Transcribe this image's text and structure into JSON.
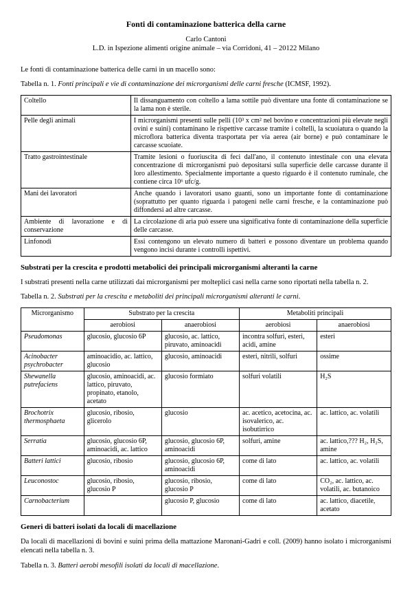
{
  "title": "Fonti di contaminazione batterica della carne",
  "author": "Carlo Cantoni",
  "affiliation": "L.D. in Ispezione alimenti origine animale – via Corridoni, 41 – 20122 Milano",
  "intro": "Le fonti di contaminazione batterica delle carni in un macello sono:",
  "table1": {
    "caption_label": "Tabella n. 1. ",
    "caption_text": "Fonti principali e vie di contaminazione dei microrganismi delle carni fresche",
    "caption_suffix": " (ICMSF, 1992).",
    "rows": [
      [
        "Coltello",
        "Il dissanguamento con coltello a lama sottile può diventare una fonte di contaminazione se la lama non è sterile."
      ],
      [
        "Pelle degli animali",
        "I microrganismi presenti sulle pelli (10³ x cm² nel bovino e concentrazioni più elevate negli ovini e suini) contaminano le rispettive carcasse tramite i coltelli, la scuoiatura o quando la microflora batterica diventa trasportata per via aerea (air borne) e può contaminare le carcasse scuoiate."
      ],
      [
        "Tratto gastrointestinale",
        "Tramite lesioni o fuoriuscita di feci dall'ano, il contenuto intestinale con una elevata concentrazione di microrganismi può depositarsi sulla superficie delle carcasse durante il loro allestimento. Specialmente importante a questo riguardo è il contenuto ruminale, che contiene circa 10⁶ ufc/g."
      ],
      [
        "Mani dei lavoratori",
        "Anche quando i lavoratori usano guanti, sono un importante fonte di contaminazione (soprattutto per quanto riguarda i patogeni nelle carni fresche, e la contaminazione può diffondersi ad altre carcasse."
      ],
      [
        "Ambiente di lavorazione e di conservazione",
        "La circolazione di aria può essere una significativa fonte di contaminazione della superficie delle carcasse."
      ],
      [
        "Linfonodi",
        "Essi contengono un elevato numero di batteri e possono diventare un problema quando vengono incisi durante i controlli ispettivi."
      ]
    ]
  },
  "section2_title": "Substrati per la crescita e prodotti metabolici dei principali microrganismi alteranti la carne",
  "section2_intro": "I substrati presenti nella carne utilizzati dai microrganismi per molteplici casi nella carne sono riportati nella tabella n. 2.",
  "table2": {
    "caption_label": "Tabella n. 2. ",
    "caption_text": "Substrati per la crescita e metaboliti dei principali microrganismi alteranti le carni",
    "caption_suffix": ".",
    "header1": [
      "Microrganismo",
      "Substrato per la crescita",
      "Metaboliti principali"
    ],
    "header2": [
      "aerobiosi",
      "anaerobiosi",
      "aerobiosi",
      "anaerobiosi"
    ],
    "rows": [
      [
        "Pseudomonas",
        "glucosio, glucosio 6P",
        "glucosio, ac. lattico, piruvato, aminoacidi",
        "incontra solfuri, esteri, acidi, amine",
        "esteri"
      ],
      [
        "Acinobacter psychrobacter",
        "aminoacidio, ac. lattico, glucosio",
        "glucosio, aminoacidi",
        "esteri, nitrili, solfuri",
        "ossime"
      ],
      [
        "Shewanella putrefaciens",
        "glucosio, aminoacidi, ac. lattico, piruvato, propinato, etanolo, acetato",
        "glucosio formiato",
        "solfuri volatili",
        "H₂S"
      ],
      [
        "Brochotrix thermosphaeta",
        "glucosio, ribosio, glicerolo",
        "glucosio",
        "ac. acetico, acetocina, ac. isovalerico, ac. isobutirrico",
        "ac. lattico, ac. volatili"
      ],
      [
        "Serratia",
        "glucosio, glucosio 6P, aminoacidi, ac. lattico",
        "glucosio, glucosio 6P, aminoacidi",
        "solfuri, amine",
        "ac. lattico,??? H₂, H₂S, amine"
      ],
      [
        "Batteri lattici",
        "glucosio, ribosio",
        "glucosio, glucosio 6P, aminoacidi",
        "come di lato",
        "ac. lattico, ac. volatili"
      ],
      [
        "Leuconostoc",
        "glucosio, ribosio, glucosio P",
        "glucosio, ribosio, glucosio P",
        "come di lato",
        "CO₂, ac. lattico, ac. volatili, ac. butanoico"
      ],
      [
        "Carnobacterium",
        "",
        "glucosio P, glucosio",
        "come di lato",
        "ac. lattico, diacetile, acetato"
      ]
    ]
  },
  "section3_title": "Generi di batteri isolati da locali di macellazione",
  "section3_intro": "Da locali di macellazioni di bovini e suini prima della mattazione Maronani-Gadri e coll. (2009) hanno isolato i microrganismi elencati nella tabella n. 3.",
  "table3": {
    "caption_label": "Tabella n. 3. ",
    "caption_text": "Batteri aerobi mesofili isolati da locali di macellazione",
    "caption_suffix": "."
  }
}
